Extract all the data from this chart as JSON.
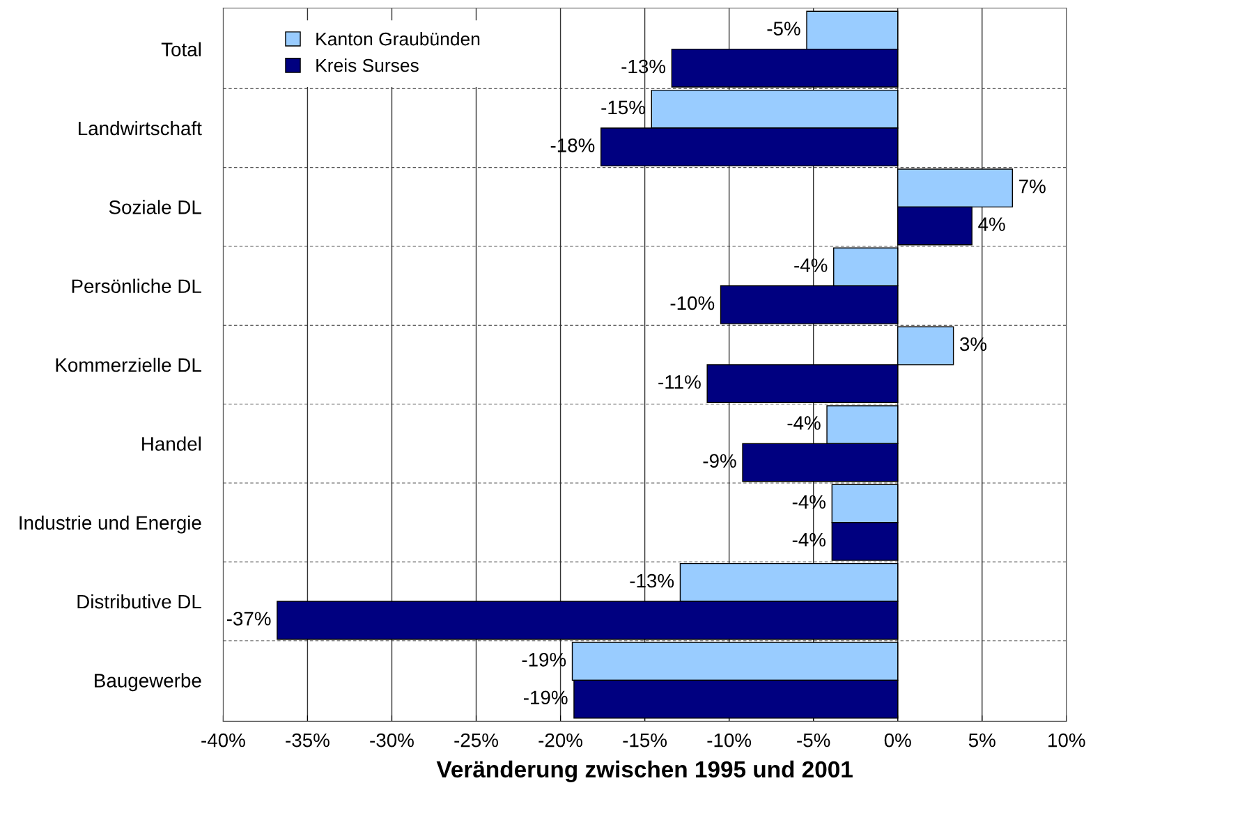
{
  "chart_data": {
    "type": "bar",
    "orientation": "horizontal",
    "xlabel": "Veränderung zwischen 1995 und 2001",
    "categories": [
      "Total",
      "Landwirtschaft",
      "Soziale DL",
      "Persönliche DL",
      "Kommerzielle DL",
      "Handel",
      "Industrie und Energie",
      "Distributive DL",
      "Baugewerbe"
    ],
    "series": [
      {
        "name": "Kanton Graubünden",
        "color": "#99ccff",
        "values": [
          -5.4,
          -14.6,
          6.8,
          -3.8,
          3.3,
          -4.2,
          -3.9,
          -12.9,
          -19.3
        ],
        "value_labels": [
          "-5%",
          "-15%",
          "7%",
          "-4%",
          "3%",
          "-4%",
          "-4%",
          "-13%",
          "-19%"
        ]
      },
      {
        "name": "Kreis Surses",
        "color": "#000080",
        "values": [
          -13.4,
          -17.6,
          4.4,
          -10.5,
          -11.3,
          -9.2,
          -3.9,
          -36.8,
          -19.2
        ],
        "value_labels": [
          "-13%",
          "-18%",
          "4%",
          "-10%",
          "-11%",
          "-9%",
          "-4%",
          "-37%",
          "-19%"
        ]
      }
    ],
    "xlim": [
      -40,
      10
    ],
    "xticks": [
      {
        "value": -40,
        "label": "-40%"
      },
      {
        "value": -35,
        "label": "-35%"
      },
      {
        "value": -30,
        "label": "-30%"
      },
      {
        "value": -25,
        "label": "-25%"
      },
      {
        "value": -20,
        "label": "-20%"
      },
      {
        "value": -15,
        "label": "-15%"
      },
      {
        "value": -10,
        "label": "-10%"
      },
      {
        "value": -5,
        "label": "-5%"
      },
      {
        "value": 0,
        "label": "0%"
      },
      {
        "value": 5,
        "label": "5%"
      },
      {
        "value": 10,
        "label": "10%"
      }
    ],
    "grid": "x",
    "legend": "top left"
  }
}
